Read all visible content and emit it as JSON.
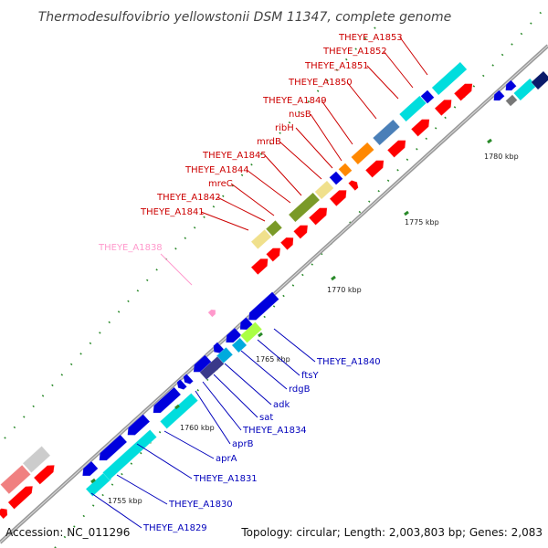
{
  "title": "Thermodesulfovibrio yellowstonii DSM 11347, complete genome",
  "footer": {
    "accession": "Accession: NC_011296",
    "topology": "Topology: circular; Length: 2,003,803 bp; Genes: 2,083"
  },
  "scale_labels": [
    "1755 kbp",
    "1760 kbp",
    "1765 kbp",
    "1770 kbp",
    "1775 kbp",
    "1780 kbp"
  ],
  "labels_forward": [
    "THEYE_A1841",
    "THEYE_A1842",
    "mreC",
    "THEYE_A1844",
    "THEYE_A1845",
    "mrdB",
    "ribH",
    "nusB",
    "THEYE_A1849",
    "THEYE_A1850",
    "THEYE_A1851",
    "THEYE_A1852",
    "THEYE_A1853"
  ],
  "label_pseudo": "THEYE_A1838",
  "labels_reverse": [
    "THEYE_A1829",
    "THEYE_A1830",
    "THEYE_A1831",
    "aprA",
    "aprB",
    "THEYE_A1834",
    "sat",
    "adk",
    "rdgB",
    "ftsY",
    "THEYE_A1840"
  ],
  "colors": {
    "forward_cds": "#ff0000",
    "reverse_cds": "#0000dd",
    "forward_label": "#cc0000",
    "reverse_label": "#0000bb",
    "pseudo_label": "#ff99cc",
    "backbone": "#999999"
  }
}
